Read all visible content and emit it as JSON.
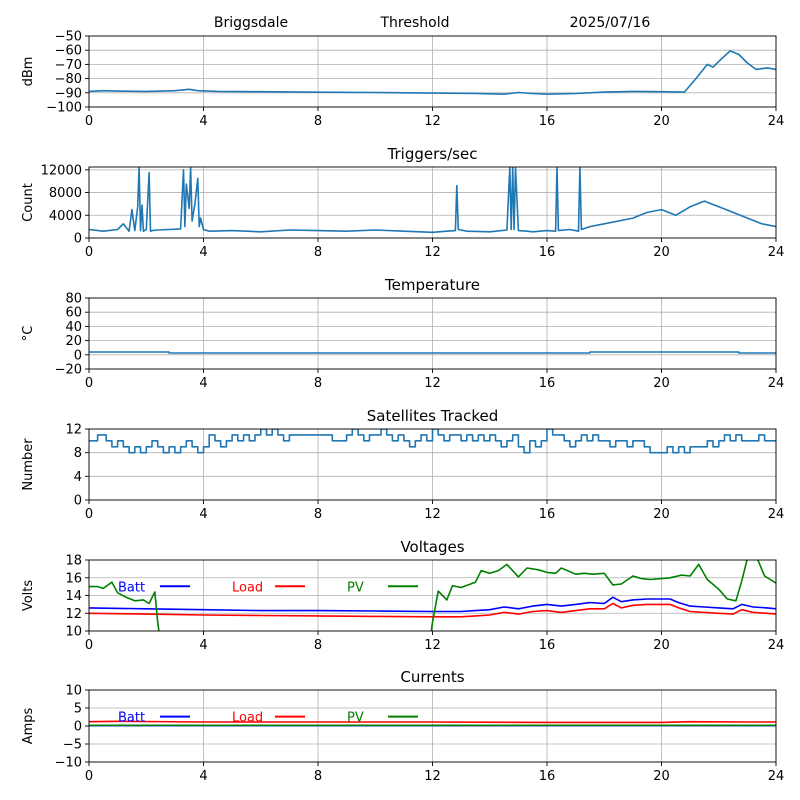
{
  "header": {
    "site": "Briggsdale",
    "mode": "Threshold",
    "date": "2025/07/16"
  },
  "colors": {
    "series": "#1f77b4",
    "batt": "#0000ff",
    "load": "#ff0000",
    "pv": "#008000",
    "grid": "#b0b0b0"
  },
  "chart_data": [
    {
      "type": "line",
      "title": "",
      "ylabel": "dBm",
      "xlim": [
        0,
        24
      ],
      "ylim": [
        -100,
        -50
      ],
      "xticks": [
        0,
        4,
        8,
        12,
        16,
        20,
        24
      ],
      "yticks": [
        -100,
        -90,
        -80,
        -70,
        -60,
        -50
      ],
      "grid": true,
      "series": [
        {
          "x": [
            0,
            0.5,
            1,
            2,
            3,
            3.5,
            3.8,
            4.5,
            6,
            8,
            10,
            12,
            13.5,
            14.5,
            15,
            15.5,
            16,
            17,
            18,
            19,
            20,
            20.8,
            21.2,
            21.6,
            21.8,
            22.1,
            22.4,
            22.7,
            23,
            23.3,
            23.7,
            24
          ],
          "y": [
            -89,
            -88.5,
            -88.8,
            -89,
            -88.5,
            -87.5,
            -88.5,
            -89,
            -89.2,
            -89.6,
            -89.8,
            -90.2,
            -90.4,
            -91,
            -89.8,
            -90.5,
            -91,
            -90.5,
            -89.5,
            -89,
            -89.2,
            -89.5,
            -80,
            -70,
            -72,
            -66,
            -60.5,
            -63,
            -69,
            -73.5,
            -72.5,
            -73.5
          ]
        }
      ]
    },
    {
      "type": "line",
      "title": "Triggers/sec",
      "ylabel": "Count",
      "xlim": [
        0,
        24
      ],
      "ylim": [
        0,
        12500
      ],
      "xticks": [
        0,
        4,
        8,
        12,
        16,
        20,
        24
      ],
      "yticks": [
        0,
        4000,
        8000,
        12000
      ],
      "grid": true,
      "series": [
        {
          "x": [
            0,
            0.5,
            1,
            1.2,
            1.4,
            1.5,
            1.6,
            1.7,
            1.75,
            1.8,
            1.85,
            1.9,
            2.0,
            2.1,
            2.15,
            2.2,
            2.4,
            2.8,
            3.2,
            3.3,
            3.35,
            3.4,
            3.5,
            3.55,
            3.6,
            3.7,
            3.8,
            3.85,
            3.9,
            4.0,
            4.2,
            5,
            6,
            7,
            8,
            9,
            10,
            11,
            12,
            12.5,
            12.8,
            12.85,
            12.9,
            13.2,
            14,
            14.6,
            14.7,
            14.75,
            14.8,
            14.85,
            14.9,
            15.0,
            15.3,
            15.5,
            16,
            16.3,
            16.35,
            16.4,
            16.8,
            17.1,
            17.15,
            17.2,
            17.5,
            18,
            18.5,
            19,
            19.5,
            20,
            20.5,
            21,
            21.5,
            22,
            22.5,
            23,
            23.5,
            24
          ],
          "y": [
            1500,
            1200,
            1500,
            2500,
            1200,
            5000,
            1300,
            5500,
            12400,
            1300,
            5800,
            1200,
            1500,
            11500,
            1200,
            1300,
            1400,
            1500,
            1600,
            12000,
            2000,
            9500,
            5200,
            12400,
            3000,
            6000,
            10500,
            2000,
            3500,
            1500,
            1200,
            1300,
            1100,
            1400,
            1300,
            1200,
            1400,
            1200,
            1000,
            1200,
            1300,
            9200,
            1500,
            1200,
            1100,
            1400,
            12400,
            1500,
            12400,
            1500,
            12400,
            1300,
            1200,
            1100,
            1300,
            1200,
            12400,
            1300,
            1500,
            1200,
            12400,
            1500,
            2000,
            2500,
            3000,
            3500,
            4500,
            5000,
            4000,
            5500,
            6500,
            5500,
            4500,
            3500,
            2500,
            2000
          ]
        }
      ]
    },
    {
      "type": "line",
      "title": "Temperature",
      "ylabel": "°C",
      "xlim": [
        0,
        24
      ],
      "ylim": [
        -20,
        80
      ],
      "xticks": [
        0,
        4,
        8,
        12,
        16,
        20,
        24
      ],
      "yticks": [
        -20,
        0,
        20,
        40,
        60,
        80
      ],
      "grid": true,
      "series": [
        {
          "x": [
            0,
            2.8,
            2.8,
            17.5,
            17.5,
            22.7,
            22.7,
            24
          ],
          "y": [
            4,
            4,
            2.5,
            2.5,
            4,
            4,
            2.5,
            2.5
          ]
        }
      ]
    },
    {
      "type": "line",
      "title": "Satellites Tracked",
      "ylabel": "Number",
      "xlim": [
        0,
        24
      ],
      "ylim": [
        0,
        12
      ],
      "xticks": [
        0,
        4,
        8,
        12,
        16,
        20,
        24
      ],
      "yticks": [
        0,
        4,
        8,
        12
      ],
      "grid": true,
      "series": [
        {
          "x": [
            0,
            0.3,
            0.6,
            0.8,
            1.0,
            1.2,
            1.4,
            1.6,
            1.8,
            2.0,
            2.2,
            2.4,
            2.6,
            2.8,
            3.0,
            3.2,
            3.4,
            3.6,
            3.8,
            4.0,
            4.2,
            4.4,
            4.6,
            4.8,
            5.0,
            5.2,
            5.4,
            5.6,
            5.8,
            6.0,
            6.2,
            6.4,
            6.6,
            6.8,
            7.0,
            7.5,
            8.0,
            8.5,
            9.0,
            9.2,
            9.4,
            9.6,
            9.8,
            10.0,
            10.2,
            10.4,
            10.6,
            10.8,
            11.0,
            11.2,
            11.4,
            11.6,
            11.8,
            12.0,
            12.2,
            12.4,
            12.6,
            12.8,
            13.0,
            13.2,
            13.4,
            13.6,
            13.8,
            14.0,
            14.2,
            14.4,
            14.6,
            14.8,
            15.0,
            15.2,
            15.4,
            15.6,
            15.8,
            16.0,
            16.2,
            16.4,
            16.6,
            16.8,
            17.0,
            17.2,
            17.4,
            17.6,
            17.8,
            18.0,
            18.2,
            18.4,
            18.6,
            18.8,
            19.0,
            19.2,
            19.4,
            19.6,
            19.8,
            20.0,
            20.2,
            20.4,
            20.6,
            20.8,
            21.0,
            21.2,
            21.4,
            21.6,
            21.8,
            22.0,
            22.2,
            22.4,
            22.6,
            22.8,
            23.0,
            23.2,
            23.4,
            23.6,
            23.8,
            24.0
          ],
          "y": [
            10,
            11,
            10,
            9,
            10,
            9,
            8,
            9,
            8,
            9,
            10,
            9,
            8,
            9,
            8,
            9,
            10,
            9,
            8,
            9,
            11,
            10,
            9,
            10,
            11,
            10,
            11,
            10,
            11,
            12,
            11,
            12,
            11,
            10,
            11,
            11,
            11,
            10,
            11,
            12,
            11,
            10,
            11,
            11,
            12,
            11,
            10,
            11,
            10,
            9,
            10,
            11,
            10,
            12,
            11,
            10,
            11,
            11,
            10,
            11,
            10,
            11,
            10,
            11,
            10,
            9,
            10,
            11,
            9,
            8,
            10,
            9,
            10,
            12,
            11,
            11,
            10,
            9,
            10,
            11,
            10,
            11,
            10,
            10,
            9,
            10,
            10,
            9,
            10,
            10,
            9,
            8,
            8,
            8,
            9,
            8,
            9,
            8,
            9,
            9,
            9,
            10,
            9,
            10,
            11,
            10,
            11,
            10,
            10,
            10,
            11,
            10,
            10,
            10
          ],
          "step": true
        }
      ]
    },
    {
      "type": "line",
      "title": "Voltages",
      "ylabel": "Volts",
      "xlim": [
        0,
        24
      ],
      "ylim": [
        10,
        18
      ],
      "xticks": [
        0,
        4,
        8,
        12,
        16,
        20,
        24
      ],
      "yticks": [
        10,
        12,
        14,
        16,
        18
      ],
      "grid": true,
      "legend": [
        "Batt",
        "Load",
        "PV"
      ],
      "series": [
        {
          "name": "Batt",
          "x": [
            0,
            2,
            4,
            6,
            8,
            10,
            12,
            13,
            13.5,
            14,
            14.5,
            15,
            15.5,
            16,
            16.5,
            17,
            17.5,
            18,
            18.3,
            18.6,
            19,
            19.5,
            20,
            20.3,
            20.6,
            21,
            21.5,
            22,
            22.5,
            22.8,
            23.2,
            23.7,
            24
          ],
          "y": [
            12.6,
            12.5,
            12.4,
            12.3,
            12.3,
            12.25,
            12.2,
            12.2,
            12.3,
            12.4,
            12.7,
            12.5,
            12.8,
            13,
            12.8,
            13,
            13.2,
            13.1,
            13.8,
            13.3,
            13.5,
            13.6,
            13.6,
            13.6,
            13.2,
            12.8,
            12.7,
            12.6,
            12.5,
            13,
            12.7,
            12.6,
            12.5
          ]
        },
        {
          "name": "Load",
          "x": [
            0,
            2,
            4,
            6,
            8,
            10,
            12,
            13,
            13.5,
            14,
            14.5,
            15,
            15.5,
            16,
            16.5,
            17,
            17.5,
            18,
            18.3,
            18.6,
            19,
            19.5,
            20,
            20.3,
            20.6,
            21,
            21.5,
            22,
            22.5,
            22.8,
            23.2,
            23.7,
            24
          ],
          "y": [
            12.0,
            11.9,
            11.8,
            11.75,
            11.7,
            11.65,
            11.6,
            11.6,
            11.7,
            11.8,
            12.1,
            11.9,
            12.2,
            12.3,
            12.1,
            12.3,
            12.5,
            12.5,
            13.1,
            12.6,
            12.9,
            13,
            13,
            13,
            12.6,
            12.2,
            12.1,
            12,
            11.9,
            12.4,
            12.1,
            12,
            11.9
          ]
        },
        {
          "name": "PV",
          "x": [
            0,
            0.3,
            0.5,
            0.8,
            1.0,
            1.3,
            1.6,
            1.9,
            2.1,
            2.3,
            2.4,
            2.45,
            11.95,
            12.0,
            12.2,
            12.5,
            12.7,
            13.0,
            13.5,
            13.7,
            14.0,
            14.3,
            14.6,
            15.0,
            15.3,
            15.7,
            16.0,
            16.3,
            16.5,
            17.0,
            17.3,
            17.6,
            18.0,
            18.3,
            18.6,
            19.0,
            19.3,
            19.6,
            20.0,
            20.3,
            20.7,
            21.0,
            21.3,
            21.6,
            22.0,
            22.3,
            22.6,
            22.8,
            23.0,
            23.3,
            23.6,
            24.0
          ],
          "y": [
            15,
            15,
            14.8,
            15.5,
            14.3,
            13.8,
            13.4,
            13.5,
            13.1,
            14.4,
            11,
            9.8,
            9.8,
            11,
            14.5,
            13.5,
            15.1,
            14.9,
            15.5,
            16.8,
            16.5,
            16.8,
            17.5,
            16.1,
            17.1,
            16.9,
            16.6,
            16.5,
            17.1,
            16.4,
            16.5,
            16.4,
            16.5,
            15.2,
            15.3,
            16.2,
            15.9,
            15.8,
            15.9,
            16,
            16.3,
            16.2,
            17.5,
            15.8,
            14.7,
            13.6,
            13.4,
            15.6,
            18.2,
            18.5,
            16.2,
            15.4
          ]
        }
      ]
    },
    {
      "type": "line",
      "title": "Currents",
      "ylabel": "Amps",
      "xlim": [
        0,
        24
      ],
      "ylim": [
        -10,
        10
      ],
      "xticks": [
        0,
        4,
        8,
        12,
        16,
        20,
        24
      ],
      "yticks": [
        -10,
        -5,
        0,
        5,
        10
      ],
      "grid": true,
      "legend": [
        "Batt",
        "Load",
        "PV"
      ],
      "series": [
        {
          "name": "Batt",
          "x": [
            0,
            24
          ],
          "y": [
            0.1,
            0.1
          ]
        },
        {
          "name": "Load",
          "x": [
            0,
            1,
            4,
            8,
            12,
            16,
            20,
            21,
            23,
            24
          ],
          "y": [
            1.2,
            1.3,
            1.1,
            1.1,
            1.1,
            1.0,
            1.0,
            1.2,
            1.1,
            1.1
          ]
        },
        {
          "name": "PV",
          "x": [
            0,
            24
          ],
          "y": [
            0.2,
            0.2
          ]
        }
      ]
    }
  ]
}
